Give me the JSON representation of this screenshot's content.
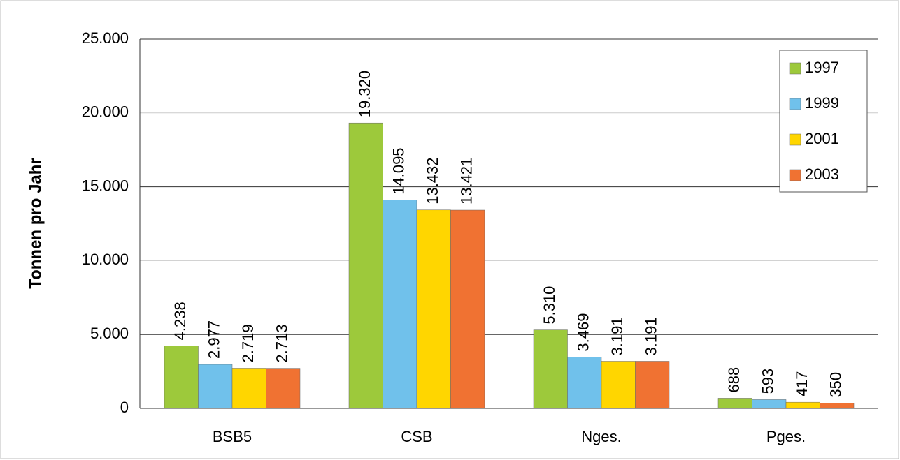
{
  "chart_data": {
    "type": "bar",
    "y_label": "Tonnen pro Jahr",
    "categories": [
      "BSB5",
      "CSB",
      "Nges.",
      "Pges."
    ],
    "series": [
      {
        "name": "1997",
        "color": "#9dc93b",
        "values": [
          4238,
          19320,
          5310,
          688
        ],
        "value_labels": [
          "4.238",
          "19.320",
          "5.310",
          "688"
        ]
      },
      {
        "name": "1999",
        "color": "#70c1eb",
        "values": [
          2977,
          14095,
          3469,
          593
        ],
        "value_labels": [
          "2.977",
          "14.095",
          "3.469",
          "593"
        ]
      },
      {
        "name": "2001",
        "color": "#ffd600",
        "values": [
          2719,
          13432,
          3191,
          417
        ],
        "value_labels": [
          "2.719",
          "13.432",
          "3.191",
          "417"
        ]
      },
      {
        "name": "2003",
        "color": "#f07232",
        "values": [
          2713,
          13421,
          3191,
          350
        ],
        "value_labels": [
          "2.713",
          "13.421",
          "3.191",
          "350"
        ]
      }
    ],
    "ylim": [
      0,
      25000
    ],
    "yticks": [
      0,
      {
        "value": 5000,
        "label": "5.000"
      },
      {
        "value": 10000,
        "label": "10.000"
      },
      {
        "value": 15000,
        "label": "15.000"
      },
      {
        "value": 20000,
        "label": "20.000"
      },
      {
        "value": 25000,
        "label": "25.000"
      }
    ],
    "grid": true,
    "legend": "top-right"
  }
}
